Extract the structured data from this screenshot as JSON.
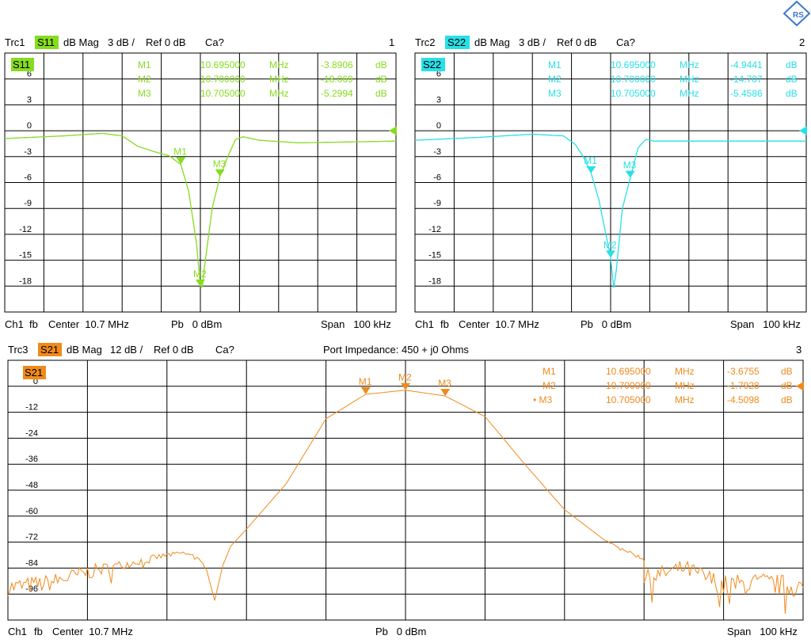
{
  "logo": {
    "icon": "rohde-schwarz-diamond-logo",
    "color": "#3b77c9"
  },
  "panels": [
    {
      "trace": "Trc1",
      "param": "S11",
      "format": "dB Mag",
      "scale": "3 dB /",
      "ref": "Ref 0 dB",
      "cal": "Ca?",
      "window_number": "1",
      "color": "#86dc20",
      "text_color": "#000000",
      "footer": {
        "channel": "Ch1",
        "fb": "fb",
        "center": "Center  10.7 MHz",
        "power": "Pb   0 dBm",
        "span": "Span   100 kHz"
      },
      "markers": [
        {
          "name": "M1",
          "freq": "10.695000",
          "unit": "MHz",
          "value": "-3.8906",
          "vunit": "dB",
          "active": ""
        },
        {
          "name": "M2",
          "freq": "10.700000",
          "unit": "MHz",
          "value": "-18.069",
          "vunit": "dB",
          "active": ""
        },
        {
          "name": "M3",
          "freq": "10.705000",
          "unit": "MHz",
          "value": "-5.2994",
          "vunit": "dB",
          "active": ""
        }
      ],
      "chart_data": {
        "type": "line",
        "xlabel": "",
        "ylabel": "",
        "xlim": [
          10.65,
          10.75
        ],
        "ylim": [
          -21,
          9
        ],
        "y_ticks": [
          "6",
          "3",
          "0",
          "-3",
          "-6",
          "-9",
          "-12",
          "-15",
          "-18"
        ],
        "y_tick_values": [
          6,
          3,
          0,
          -3,
          -6,
          -9,
          -12,
          -15,
          -18
        ],
        "ref_level": 0,
        "series": [
          {
            "x": [
              10.65,
              10.665,
              10.675,
              10.68,
              10.684,
              10.688,
              10.692,
              10.695,
              10.697,
              10.699,
              10.7,
              10.7005,
              10.701,
              10.703,
              10.705,
              10.707,
              10.709,
              10.711,
              10.715,
              10.725,
              10.75
            ],
            "values": [
              -0.9,
              -0.6,
              -0.3,
              -0.6,
              -1.8,
              -2.4,
              -2.9,
              -3.9,
              -7.0,
              -13.0,
              -18.0,
              -18.1,
              -16.0,
              -9.0,
              -5.3,
              -3.0,
              -1.0,
              -0.7,
              -1.1,
              -1.4,
              -1.2
            ]
          }
        ],
        "marker_points": [
          {
            "name": "M1",
            "x": 10.695,
            "y": -3.8906
          },
          {
            "name": "M2",
            "x": 10.7,
            "y": -18.069
          },
          {
            "name": "M3",
            "x": 10.705,
            "y": -5.2994
          }
        ]
      }
    },
    {
      "trace": "Trc2",
      "param": "S22",
      "format": "dB Mag",
      "scale": "3 dB /",
      "ref": "Ref 0 dB",
      "cal": "Ca?",
      "window_number": "2",
      "color": "#27e0e8",
      "text_color": "#000000",
      "footer": {
        "channel": "Ch1",
        "fb": "fb",
        "center": "Center  10.7 MHz",
        "power": "Pb   0 dBm",
        "span": "Span   100 kHz"
      },
      "markers": [
        {
          "name": "M1",
          "freq": "10.695000",
          "unit": "MHz",
          "value": "-4.9441",
          "vunit": "dB",
          "active": ""
        },
        {
          "name": "M2",
          "freq": "10.700000",
          "unit": "MHz",
          "value": "-14.707",
          "vunit": "dB",
          "active": ""
        },
        {
          "name": "M3",
          "freq": "10.705000",
          "unit": "MHz",
          "value": "-5.4586",
          "vunit": "dB",
          "active": ""
        }
      ],
      "chart_data": {
        "type": "line",
        "xlabel": "",
        "ylabel": "",
        "xlim": [
          10.65,
          10.75
        ],
        "ylim": [
          -21,
          9
        ],
        "y_ticks": [
          "6",
          "3",
          "0",
          "-3",
          "-6",
          "-9",
          "-12",
          "-15",
          "-18"
        ],
        "y_tick_values": [
          6,
          3,
          0,
          -3,
          -6,
          -9,
          -12,
          -15,
          -18
        ],
        "ref_level": 0,
        "series": [
          {
            "x": [
              10.65,
              10.665,
              10.68,
              10.688,
              10.691,
              10.693,
              10.695,
              10.697,
              10.699,
              10.7,
              10.7008,
              10.7015,
              10.703,
              10.705,
              10.707,
              10.709,
              10.711,
              10.72,
              10.75
            ],
            "values": [
              -1.1,
              -0.8,
              -0.4,
              -0.6,
              -1.6,
              -3.0,
              -4.9,
              -8.0,
              -12.5,
              -14.7,
              -18.2,
              -16.0,
              -9.0,
              -5.5,
              -2.0,
              -1.0,
              -1.2,
              -1.2,
              -1.2
            ]
          }
        ],
        "marker_points": [
          {
            "name": "M1",
            "x": 10.695,
            "y": -4.9441
          },
          {
            "name": "M2",
            "x": 10.7,
            "y": -14.707
          },
          {
            "name": "M3",
            "x": 10.705,
            "y": -5.4586
          }
        ]
      }
    },
    {
      "trace": "Trc3",
      "param": "S21",
      "format": "dB Mag",
      "scale": "12 dB /",
      "ref": "Ref 0 dB",
      "cal": "Ca?",
      "window_number": "3",
      "color": "#f08a1c",
      "text_color": "#000000",
      "extra": "Port Impedance: 450 + j0 Ohms",
      "footer": {
        "channel": "Ch1",
        "fb": "fb",
        "center": "Center  10.7 MHz",
        "power": "Pb   0 dBm",
        "span": "Span   100 kHz"
      },
      "markers": [
        {
          "name": "M1",
          "freq": "10.695000",
          "unit": "MHz",
          "value": "-3.6755",
          "vunit": "dB",
          "active": ""
        },
        {
          "name": "M2",
          "freq": "10.700000",
          "unit": "MHz",
          "value": "-1.7928",
          "vunit": "dB",
          "active": ""
        },
        {
          "name": "M3",
          "freq": "10.705000",
          "unit": "MHz",
          "value": "-4.5098",
          "vunit": "dB",
          "active": "•"
        }
      ],
      "chart_data": {
        "type": "line",
        "xlabel": "",
        "ylabel": "",
        "xlim": [
          10.65,
          10.75
        ],
        "ylim": [
          -108,
          12
        ],
        "y_ticks": [
          "0",
          "-12",
          "-24",
          "-36",
          "-48",
          "-60",
          "-72",
          "-84",
          "-96"
        ],
        "y_tick_values": [
          0,
          -12,
          -24,
          -36,
          -48,
          -60,
          -72,
          -84,
          -96
        ],
        "ref_level": 0,
        "series": [
          {
            "x": [
              10.65,
              10.655,
              10.66,
              10.665,
              10.67,
              10.672,
              10.674,
              10.675,
              10.676,
              10.677,
              10.678,
              10.68,
              10.685,
              10.69,
              10.695,
              10.7,
              10.705,
              10.71,
              10.715,
              10.72,
              10.725,
              10.73,
              10.73,
              10.735,
              10.74,
              10.745,
              10.75
            ],
            "values": [
              -93,
              -91,
              -86,
              -82,
              -78,
              -77,
              -79,
              -85,
              -99,
              -83,
              -74,
              -66,
              -45,
              -15,
              -3.7,
              -1.8,
              -4.5,
              -14,
              -36,
              -57,
              -71,
              -80,
              -89,
              -84,
              -92,
              -91,
              -93
            ],
            "noise": [
              4,
              4,
              3.5,
              2,
              1.2,
              0.8,
              1,
              0,
              0,
              0,
              0,
              0,
              0,
              0,
              0,
              0,
              0,
              0,
              0,
              0,
              0,
              1,
              4,
              4,
              5,
              5,
              5
            ]
          }
        ],
        "marker_points": [
          {
            "name": "M1",
            "x": 10.695,
            "y": -3.6755
          },
          {
            "name": "M2",
            "x": 10.7,
            "y": -1.7928
          },
          {
            "name": "M3",
            "x": 10.705,
            "y": -4.5098
          }
        ]
      }
    }
  ]
}
